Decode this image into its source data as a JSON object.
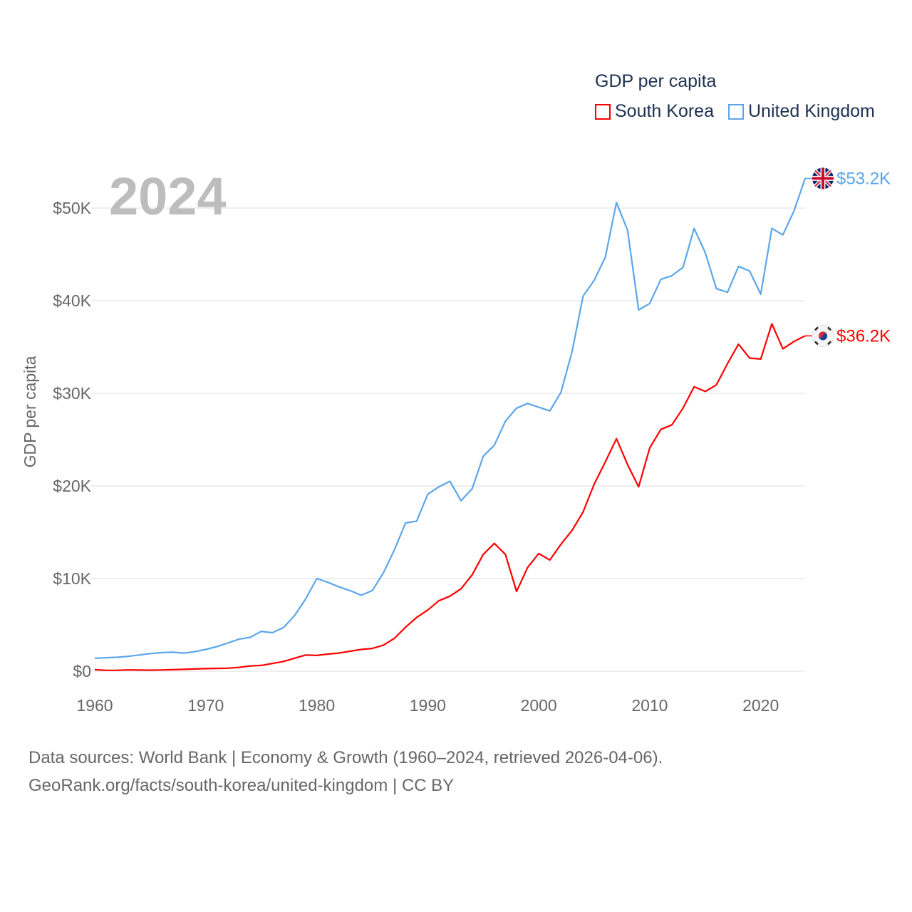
{
  "chart_data": {
    "type": "line",
    "title": "GDP per capita",
    "year_label": "2024",
    "ylabel": "GDP per capita",
    "xlabel": "",
    "units": "thousand USD",
    "ylim": [
      0,
      55
    ],
    "xlim": [
      1960,
      2024
    ],
    "yticks": [
      0,
      10,
      20,
      30,
      40,
      50
    ],
    "ytick_labels": [
      "$0",
      "$10K",
      "$20K",
      "$30K",
      "$40K",
      "$50K"
    ],
    "xticks": [
      1960,
      1970,
      1980,
      1990,
      2000,
      2010,
      2020
    ],
    "xtick_labels": [
      "1960",
      "1970",
      "1980",
      "1990",
      "2000",
      "2010",
      "2020"
    ],
    "grid": true,
    "legend_placement": "top-right",
    "x": [
      1960,
      1961,
      1962,
      1963,
      1964,
      1965,
      1966,
      1967,
      1968,
      1969,
      1970,
      1971,
      1972,
      1973,
      1974,
      1975,
      1976,
      1977,
      1978,
      1979,
      1980,
      1981,
      1982,
      1983,
      1984,
      1985,
      1986,
      1987,
      1988,
      1989,
      1990,
      1991,
      1992,
      1993,
      1994,
      1995,
      1996,
      1997,
      1998,
      1999,
      2000,
      2001,
      2002,
      2003,
      2004,
      2005,
      2006,
      2007,
      2008,
      2009,
      2010,
      2011,
      2012,
      2013,
      2014,
      2015,
      2016,
      2017,
      2018,
      2019,
      2020,
      2021,
      2022,
      2023,
      2024
    ],
    "series": [
      {
        "name": "South Korea",
        "color": "#ff0000",
        "end_label": "$36.2K",
        "flag": "south-korea-flag",
        "values": [
          0.16,
          0.09,
          0.1,
          0.14,
          0.12,
          0.11,
          0.13,
          0.16,
          0.2,
          0.24,
          0.28,
          0.3,
          0.32,
          0.41,
          0.56,
          0.62,
          0.83,
          1.05,
          1.4,
          1.75,
          1.7,
          1.85,
          1.95,
          2.15,
          2.35,
          2.45,
          2.8,
          3.55,
          4.75,
          5.8,
          6.6,
          7.6,
          8.1,
          8.9,
          10.4,
          12.6,
          13.8,
          12.6,
          8.6,
          11.2,
          12.7,
          12.0,
          13.7,
          15.2,
          17.2,
          20.2,
          22.6,
          25.1,
          22.3,
          19.9,
          24.1,
          26.1,
          26.6,
          28.4,
          30.7,
          30.2,
          30.9,
          33.2,
          35.3,
          33.8,
          33.7,
          37.5,
          34.8,
          35.6,
          36.2
        ]
      },
      {
        "name": "United Kingdom",
        "color": "#5ba6ea",
        "end_label": "$53.2K",
        "flag": "united-kingdom-flag",
        "values": [
          1.4,
          1.45,
          1.5,
          1.6,
          1.75,
          1.9,
          2.0,
          2.05,
          1.95,
          2.1,
          2.35,
          2.65,
          3.05,
          3.45,
          3.65,
          4.3,
          4.15,
          4.7,
          6.0,
          7.8,
          10.0,
          9.6,
          9.1,
          8.7,
          8.2,
          8.7,
          10.6,
          13.1,
          16.0,
          16.2,
          19.1,
          19.9,
          20.5,
          18.4,
          19.7,
          23.2,
          24.4,
          27.0,
          28.4,
          28.9,
          28.5,
          28.1,
          30.1,
          34.5,
          40.5,
          42.2,
          44.7,
          50.6,
          47.6,
          39.0,
          39.7,
          42.3,
          42.7,
          43.6,
          47.8,
          45.2,
          41.3,
          40.9,
          43.7,
          43.2,
          40.7,
          47.8,
          47.1,
          49.7,
          53.2
        ]
      }
    ]
  },
  "footer": {
    "line1": "Data sources: World Bank | Economy & Growth (1960–2024, retrieved 2026-04-06).",
    "line2": "GeoRank.org/facts/south-korea/united-kingdom | CC BY"
  }
}
